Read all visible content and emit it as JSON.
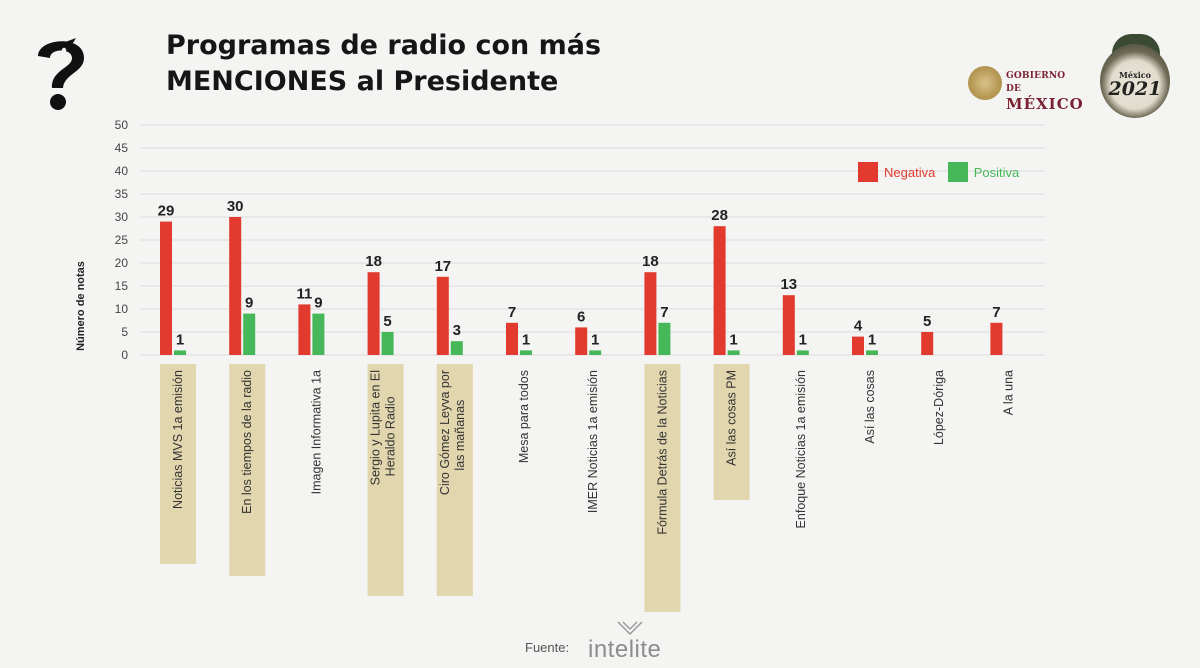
{
  "title": {
    "line1": "Programas de radio con más",
    "line2": "MENCIONES al Presidente"
  },
  "branding": {
    "gobierno_line1": "GOBIERNO DE",
    "gobierno_line2": "MÉXICO",
    "emblem_line1": "México",
    "emblem_year": "2021",
    "footer_label": "Fuente:",
    "source_logo": "intelite"
  },
  "icons": [
    "question-mark-bird-icon",
    "government-seal-icon",
    "emblem-2021-icon",
    "intelite-logo-icon"
  ],
  "colors": {
    "negativa": "#e23a2e",
    "positiva": "#47b85a",
    "highlight": "#e2d6ae",
    "grid": "#dddddd"
  },
  "chart_data": {
    "type": "bar",
    "ylabel": "Número de notas",
    "ylim": [
      0,
      50
    ],
    "yticks": [
      0,
      5,
      10,
      15,
      20,
      25,
      30,
      35,
      40,
      45,
      50
    ],
    "grid": true,
    "legend_position": "top-right",
    "categories": [
      "Noticias MVS 1a emisión",
      "En los tiempos de la radio",
      "Imagen Informativa 1a",
      "Sergio y Lupita en El Heraldo Radio",
      "Ciro Gómez Leyva por las mañanas",
      "Mesa para todos",
      "IMER Noticias 1a emisión",
      "Fórmula Detrás de la Noticias",
      "Así las cosas PM",
      "Enfoque Noticias 1a emisión",
      "Así las cosas",
      "López-Dóriga",
      "A la una"
    ],
    "highlighted": [
      true,
      true,
      false,
      true,
      true,
      false,
      false,
      true,
      true,
      false,
      false,
      false,
      false
    ],
    "series": [
      {
        "name": "Negativa",
        "values": [
          29,
          30,
          11,
          18,
          17,
          7,
          6,
          18,
          28,
          13,
          4,
          5,
          7
        ]
      },
      {
        "name": "Positiva",
        "values": [
          1,
          9,
          9,
          5,
          3,
          1,
          1,
          7,
          1,
          1,
          1,
          null,
          null
        ]
      }
    ]
  }
}
